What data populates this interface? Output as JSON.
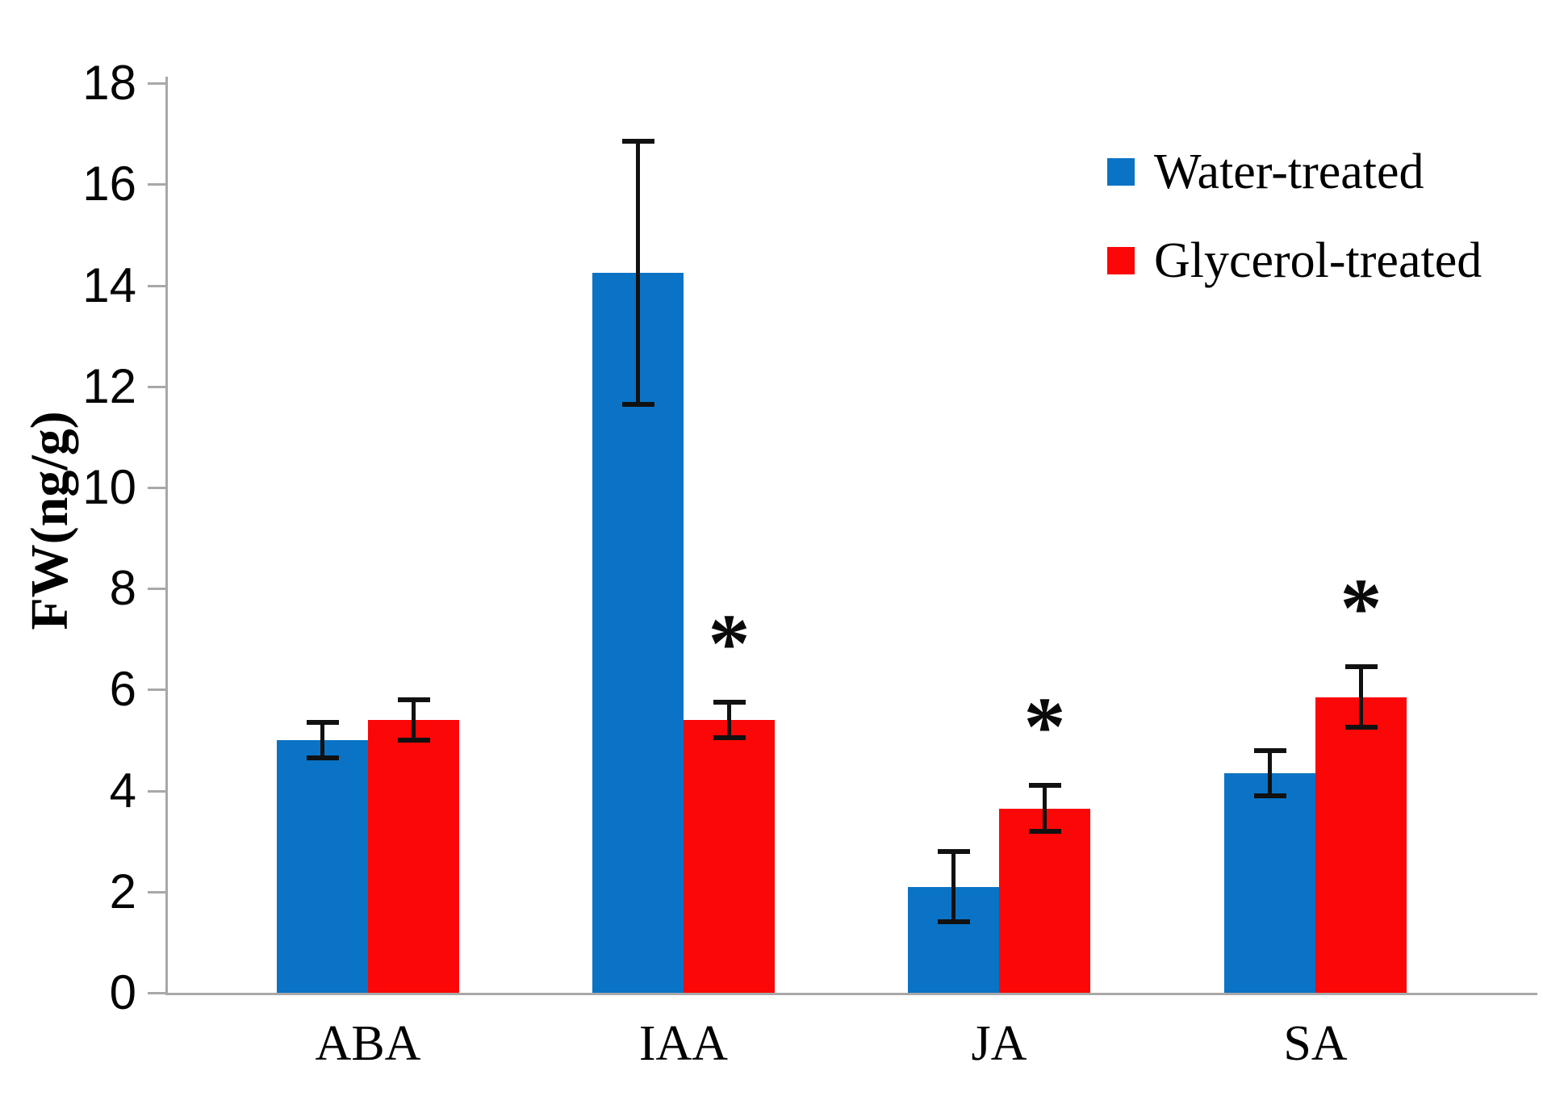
{
  "figure": {
    "background_color": "#ffffff",
    "axis_color": "#a8a8a8",
    "error_bar_color": "#111111"
  },
  "y_axis": {
    "title": "FW(ng/g)",
    "ticks": [
      0,
      2,
      4,
      6,
      8,
      10,
      12,
      14,
      16,
      18
    ]
  },
  "chart_data": {
    "type": "bar",
    "title": "",
    "xlabel": "",
    "ylabel": "FW(ng/g)",
    "ylim": [
      0,
      18
    ],
    "y_ticks": [
      0,
      2,
      4,
      6,
      8,
      10,
      12,
      14,
      16,
      18
    ],
    "grid": false,
    "legend_position": "top-right",
    "categories": [
      "ABA",
      "IAA",
      "JA",
      "SA"
    ],
    "series": [
      {
        "name": "Water-treated",
        "color": "#0a73c5",
        "values": [
          5.0,
          14.25,
          2.1,
          4.35
        ],
        "errors": [
          0.35,
          2.6,
          0.7,
          0.45
        ],
        "significant": [
          false,
          false,
          false,
          false
        ]
      },
      {
        "name": "Glycerol-treated",
        "color": "#fb0707",
        "values": [
          5.4,
          5.4,
          3.65,
          5.85
        ],
        "errors": [
          0.4,
          0.35,
          0.45,
          0.6
        ],
        "significant": [
          false,
          true,
          true,
          true
        ]
      }
    ],
    "significance_marker": "*"
  }
}
